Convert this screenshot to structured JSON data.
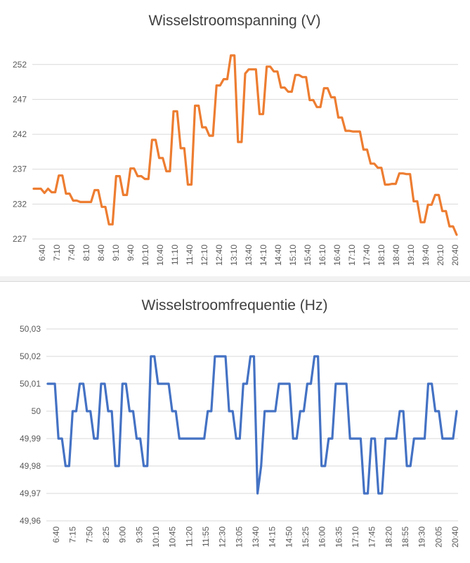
{
  "chart_data": [
    {
      "type": "line",
      "title": "Wisselstroomspanning (V)",
      "xlabel": "",
      "ylabel": "",
      "ylim": [
        227,
        255
      ],
      "y_ticks": [
        "227",
        "232",
        "237",
        "242",
        "247",
        "252"
      ],
      "y_tick_values": [
        227,
        232,
        237,
        242,
        247,
        252
      ],
      "x_tick_labels": [
        "6:40",
        "7:10",
        "7:40",
        "8:10",
        "8:40",
        "9:10",
        "9:40",
        "10:10",
        "10:40",
        "11:10",
        "11:40",
        "12:10",
        "12:40",
        "13:10",
        "13:40",
        "14:10",
        "14:40",
        "15:10",
        "15:40",
        "16:10",
        "16:40",
        "17:10",
        "17:40",
        "18:10",
        "18:40",
        "19:10",
        "19:40",
        "20:10",
        "20:40"
      ],
      "color": "#ED7D31",
      "series": [
        {
          "name": "Wisselstroomspanning (V)",
          "values": [
            234.2,
            234.2,
            234.2,
            233.6,
            234.2,
            233.7,
            233.7,
            236.1,
            236.1,
            233.5,
            233.5,
            232.5,
            232.5,
            232.3,
            232.3,
            232.3,
            232.3,
            234.0,
            234.0,
            231.6,
            231.6,
            229.1,
            229.1,
            236.0,
            236.0,
            233.3,
            233.3,
            237.1,
            237.1,
            236.0,
            236.0,
            235.6,
            235.6,
            241.2,
            241.2,
            238.6,
            238.6,
            236.7,
            236.7,
            245.3,
            245.3,
            240.0,
            240.0,
            234.8,
            234.8,
            246.1,
            246.1,
            243.0,
            243.0,
            241.8,
            241.8,
            249.0,
            249.0,
            249.9,
            249.9,
            253.3,
            253.3,
            240.9,
            240.9,
            250.7,
            251.3,
            251.3,
            251.3,
            244.9,
            244.9,
            251.7,
            251.7,
            251.0,
            251.0,
            248.7,
            248.7,
            248.1,
            248.1,
            250.5,
            250.5,
            250.2,
            250.2,
            246.9,
            246.9,
            245.9,
            245.9,
            248.6,
            248.6,
            247.3,
            247.3,
            244.4,
            244.4,
            242.5,
            242.5,
            242.4,
            242.4,
            242.4,
            239.8,
            239.8,
            237.8,
            237.8,
            237.2,
            237.2,
            234.8,
            234.8,
            234.9,
            234.9,
            236.4,
            236.4,
            236.3,
            236.3,
            232.4,
            232.4,
            229.4,
            229.4,
            231.9,
            231.9,
            233.3,
            233.3,
            231.0,
            231.0,
            228.8,
            228.8,
            227.6
          ]
        }
      ]
    },
    {
      "type": "line",
      "title": "Wisselstroomfrequentie (Hz)",
      "xlabel": "",
      "ylabel": "",
      "ylim": [
        49.96,
        50.03
      ],
      "y_ticks": [
        "49,96",
        "49,97",
        "49,98",
        "49,99",
        "50",
        "50,01",
        "50,02",
        "50,03"
      ],
      "y_tick_values": [
        49.96,
        49.97,
        49.98,
        49.99,
        50.0,
        50.01,
        50.02,
        50.03
      ],
      "x_tick_labels": [
        "6:40",
        "7:15",
        "7:50",
        "8:25",
        "9:00",
        "9:35",
        "10:10",
        "10:45",
        "11:20",
        "11:55",
        "12:30",
        "13:05",
        "13:40",
        "14:15",
        "14:50",
        "15:25",
        "16:00",
        "16:35",
        "17:10",
        "17:45",
        "18:20",
        "18:55",
        "19:30",
        "20:05",
        "20:40"
      ],
      "color": "#4472C4",
      "series": [
        {
          "name": "Wisselstroomfrequentie (Hz)",
          "values": [
            50.01,
            50.01,
            50.01,
            49.99,
            49.99,
            49.98,
            49.98,
            50.0,
            50.0,
            50.01,
            50.01,
            50.0,
            50.0,
            49.99,
            49.99,
            50.01,
            50.01,
            50.0,
            50.0,
            49.98,
            49.98,
            50.01,
            50.01,
            50.0,
            50.0,
            49.99,
            49.99,
            49.98,
            49.98,
            50.02,
            50.02,
            50.01,
            50.01,
            50.01,
            50.01,
            50.0,
            50.0,
            49.99,
            49.99,
            49.99,
            49.99,
            49.99,
            49.99,
            49.99,
            49.99,
            50.0,
            50.0,
            50.02,
            50.02,
            50.02,
            50.02,
            50.0,
            50.0,
            49.99,
            49.99,
            50.01,
            50.01,
            50.02,
            50.02,
            49.97,
            49.98,
            50.0,
            50.0,
            50.0,
            50.0,
            50.01,
            50.01,
            50.01,
            50.01,
            49.99,
            49.99,
            50.0,
            50.0,
            50.01,
            50.01,
            50.02,
            50.02,
            49.98,
            49.98,
            49.99,
            49.99,
            50.01,
            50.01,
            50.01,
            50.01,
            49.99,
            49.99,
            49.99,
            49.99,
            49.97,
            49.97,
            49.99,
            49.99,
            49.97,
            49.97,
            49.99,
            49.99,
            49.99,
            49.99,
            50.0,
            50.0,
            49.98,
            49.98,
            49.99,
            49.99,
            49.99,
            49.99,
            50.01,
            50.01,
            50.0,
            50.0,
            49.99,
            49.99,
            49.99,
            49.99,
            50.0
          ]
        }
      ]
    }
  ]
}
